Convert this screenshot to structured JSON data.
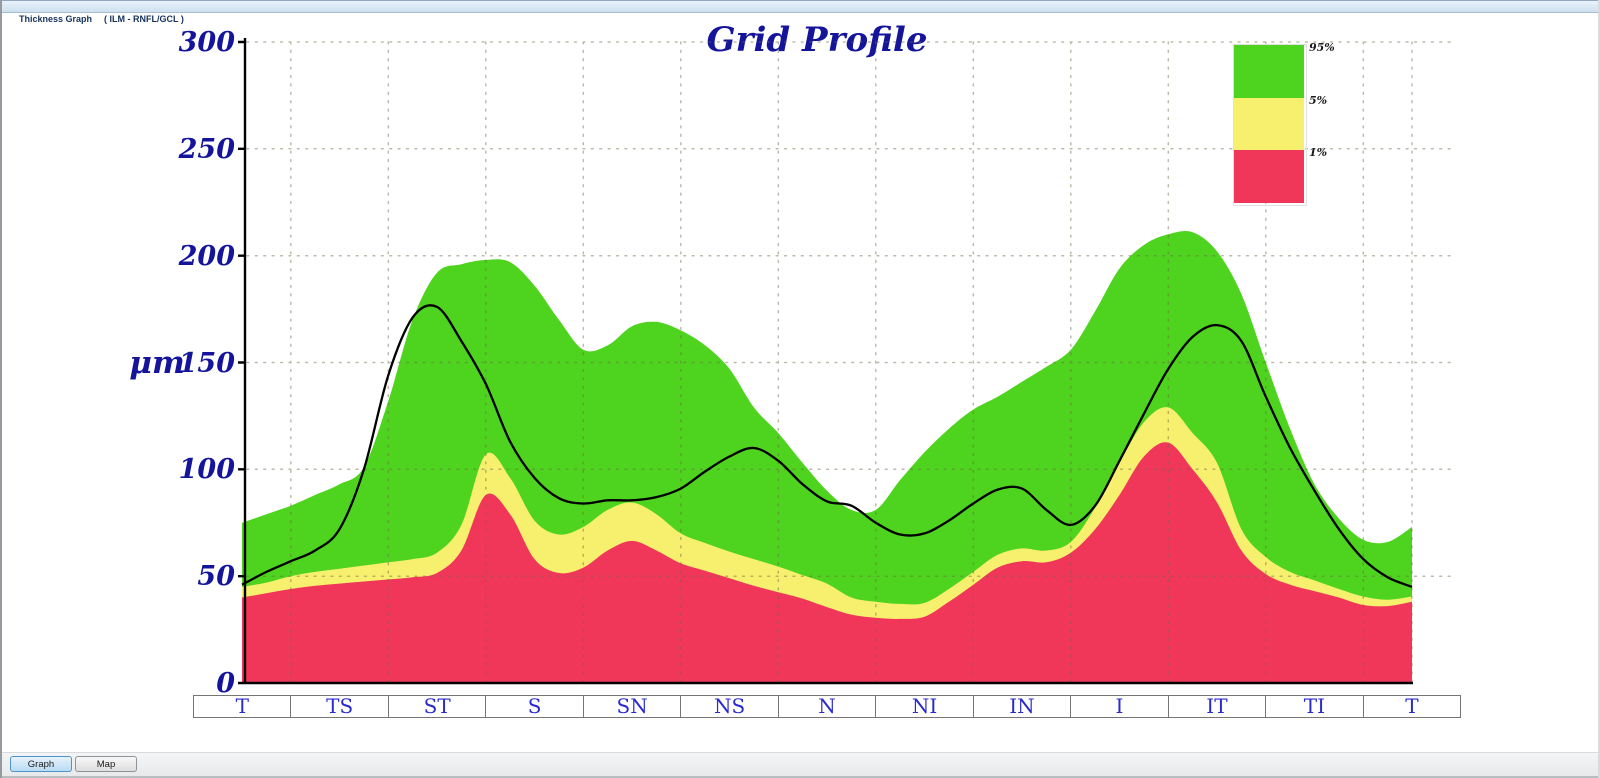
{
  "window": {
    "title_left": "Thickness Graph",
    "title_right": "( ILM - RNFL/GCL )"
  },
  "chart_data": {
    "type": "area",
    "title": "Grid Profile",
    "ylabel": "μm",
    "xlabel": "",
    "ylim": [
      0,
      300
    ],
    "y_ticks": [
      300,
      250,
      200,
      150,
      100,
      50,
      0
    ],
    "x_labels": [
      "T",
      "TS",
      "ST",
      "S",
      "SN",
      "NS",
      "N",
      "NI",
      "IN",
      "I",
      "IT",
      "TI",
      "T"
    ],
    "grid": "dotted",
    "legend_position": "top-right",
    "legend": [
      {
        "label": "95%",
        "color": "#4ed41e"
      },
      {
        "label": "5%",
        "color": "#f7ef6e"
      },
      {
        "label": "1%",
        "color": "#f0375a"
      }
    ],
    "x_start": 0,
    "x_step": 0.25,
    "series": [
      {
        "name": "normative-95th-percentile-band-top",
        "role": "band-top",
        "color": "#4ed41e",
        "values": [
          75,
          79,
          83,
          88,
          93,
          101,
          132,
          170,
          192,
          196,
          198,
          197,
          186,
          170,
          156,
          158,
          167,
          169,
          165,
          158,
          147,
          129,
          117,
          103,
          90,
          81,
          81,
          95,
          108,
          119,
          128,
          134,
          141,
          148,
          156,
          174,
          194,
          205,
          210,
          211,
          202,
          182,
          150,
          119,
          93,
          77,
          67,
          66,
          73
        ]
      },
      {
        "name": "normative-5th-percentile-band-top",
        "role": "band-top",
        "color": "#f7ef6e",
        "values": [
          45,
          47,
          50,
          52,
          53.5,
          55,
          56.5,
          58,
          61,
          74,
          107,
          96,
          76,
          69.5,
          73,
          81,
          84.5,
          79,
          70,
          65.5,
          61.5,
          58,
          54.5,
          50.5,
          46.5,
          40,
          38,
          37,
          37.5,
          44,
          52,
          60,
          63,
          62,
          66,
          82,
          103,
          122,
          129,
          117,
          103,
          72,
          59,
          52,
          48,
          44,
          40.5,
          39,
          40.5
        ]
      },
      {
        "name": "normative-1st-percentile-band-top",
        "role": "band-top",
        "color": "#f0375a",
        "values": [
          40,
          42,
          44,
          45.5,
          46.5,
          47.5,
          48.5,
          49.5,
          51.5,
          62,
          88,
          79,
          58,
          51.5,
          54,
          62,
          66.5,
          62,
          56,
          52.5,
          49,
          45.5,
          42.5,
          39.5,
          35.5,
          32,
          30.5,
          30,
          31,
          38,
          46,
          54,
          57,
          56.5,
          61,
          72,
          88,
          106,
          112.5,
          100,
          84.5,
          62,
          51,
          46,
          43,
          40,
          36.5,
          36,
          38
        ]
      },
      {
        "name": "patient-thickness",
        "role": "line",
        "color": "#000000",
        "values": [
          46,
          52,
          57,
          62,
          72,
          100,
          144,
          171,
          176,
          160,
          140,
          113,
          96,
          86.5,
          84,
          85.5,
          85.5,
          87,
          91,
          99,
          106,
          110,
          104,
          93,
          85,
          83,
          75,
          69.5,
          70,
          76,
          84,
          90.5,
          91,
          81,
          74,
          83,
          104,
          126,
          147,
          162,
          167.5,
          160,
          134,
          110,
          90,
          72,
          58,
          49.5,
          45
        ]
      }
    ]
  },
  "tabs": [
    {
      "label": "Graph",
      "selected": true
    },
    {
      "label": "Map",
      "selected": false
    }
  ],
  "colors": {
    "axis_text": "#15159b",
    "x_label_text": "#2b2bcd",
    "grid_dot": "#6e6644",
    "curve": "#000000"
  }
}
